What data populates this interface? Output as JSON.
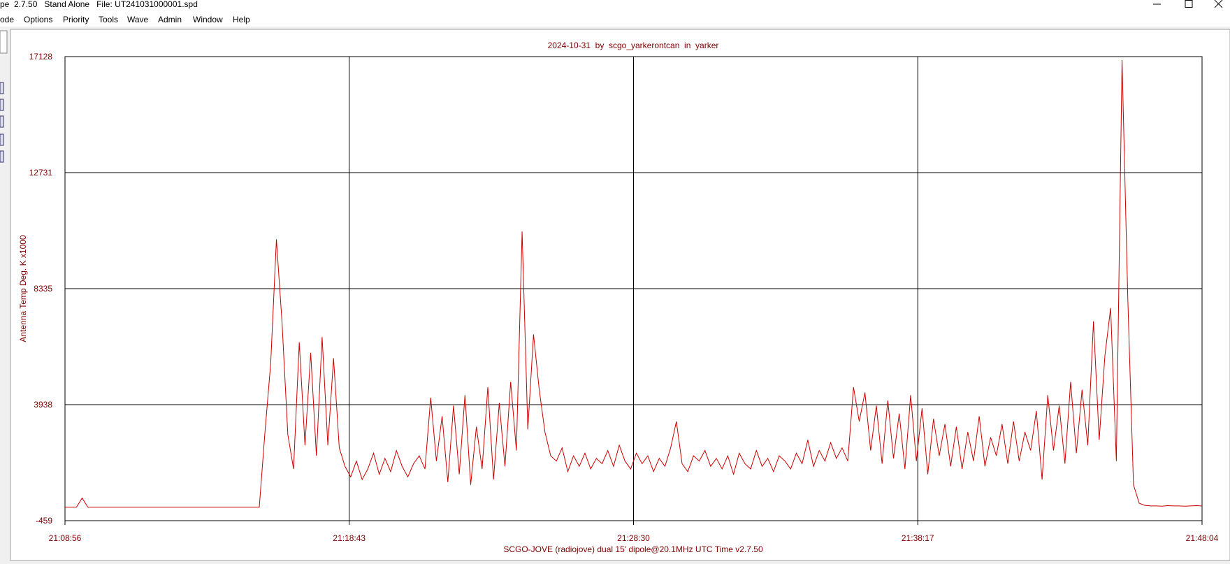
{
  "window": {
    "title": "pe  2.7.50   Stand Alone   File: UT241031000001.spd",
    "menu": [
      "ode",
      "Options",
      "Priority",
      "Tools",
      "Wave",
      "Admin",
      "Window",
      "Help"
    ]
  },
  "chart_data": {
    "type": "line",
    "title": "2024-10-31  by  scgo_yarkerontcan  in  yarker",
    "ylabel": "Antenna Temp Deg. K x1000",
    "xlabel": "SCGO-JOVE (radiojove) dual 15' dipole@20.1MHz UTC Time v2.7.50",
    "xticks": [
      "21:08:56",
      "21:18:43",
      "21:28:30",
      "21:38:17",
      "21:48:04"
    ],
    "ylim": [
      -459,
      17128
    ],
    "yticks": [
      -459,
      3938,
      8335,
      12731,
      17128
    ],
    "grid": true,
    "color": "#cc0000",
    "values": [
      50,
      50,
      50,
      400,
      50,
      50,
      50,
      50,
      50,
      50,
      50,
      50,
      50,
      50,
      50,
      50,
      50,
      50,
      50,
      50,
      50,
      50,
      50,
      50,
      50,
      50,
      50,
      50,
      50,
      50,
      50,
      50,
      50,
      50,
      50,
      2900,
      5500,
      10200,
      7000,
      2800,
      1500,
      6300,
      2400,
      5900,
      2000,
      6500,
      2400,
      5700,
      2300,
      1600,
      1200,
      1800,
      1100,
      1500,
      2100,
      1300,
      1900,
      1400,
      2200,
      1600,
      1200,
      1700,
      2000,
      1500,
      4200,
      1800,
      3500,
      1000,
      3900,
      1300,
      4300,
      900,
      3100,
      1500,
      4600,
      1100,
      4000,
      1600,
      4800,
      2200,
      10500,
      3000,
      6600,
      4500,
      2900,
      2000,
      1800,
      2300,
      1400,
      2000,
      1600,
      2100,
      1500,
      1900,
      1700,
      2200,
      1600,
      2400,
      1800,
      1500,
      2100,
      1700,
      2000,
      1400,
      1900,
      1600,
      2300,
      3300,
      1700,
      1400,
      2000,
      1800,
      2200,
      1600,
      1900,
      1500,
      2000,
      1300,
      2100,
      1700,
      1500,
      2200,
      1600,
      1900,
      1400,
      2000,
      1800,
      1500,
      2100,
      1700,
      2600,
      1600,
      2200,
      1800,
      2500,
      1900,
      2300,
      1800,
      4600,
      3300,
      4400,
      2200,
      3900,
      1700,
      4100,
      1900,
      3600,
      1500,
      4300,
      1800,
      3800,
      1300,
      3400,
      2000,
      3200,
      1600,
      3100,
      1500,
      2900,
      1800,
      3500,
      1600,
      2700,
      2000,
      3200,
      1700,
      3300,
      1800,
      2900,
      2200,
      3700,
      1100,
      4300,
      2200,
      3900,
      1700,
      4800,
      2100,
      4500,
      2400,
      7100,
      2600,
      5800,
      7600,
      1800,
      17000,
      8000,
      900,
      200,
      120,
      100,
      100,
      90,
      110,
      100,
      100,
      90,
      100,
      110,
      100
    ]
  }
}
